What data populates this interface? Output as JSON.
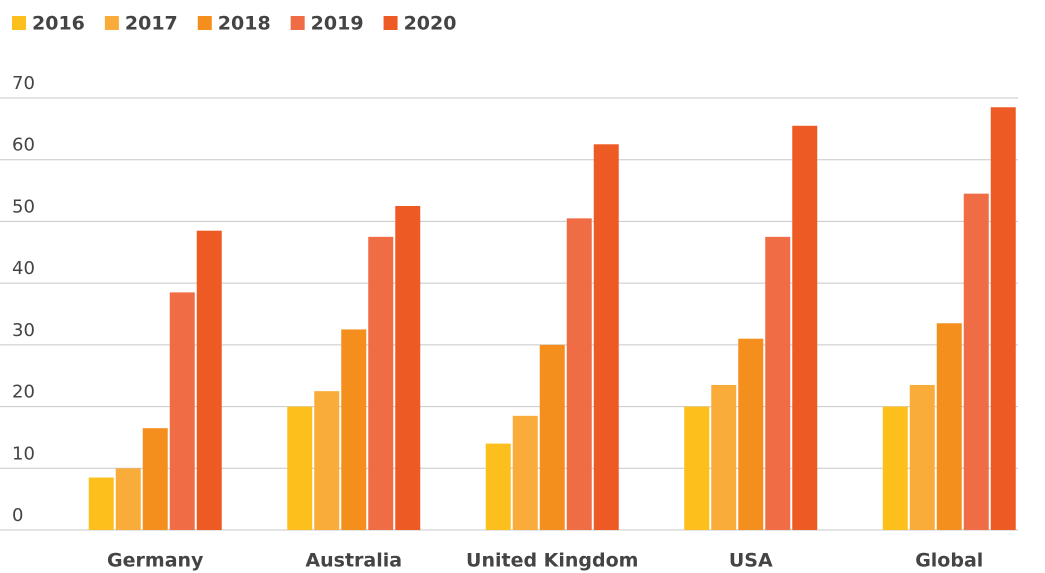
{
  "chart_data": {
    "type": "bar",
    "categories": [
      "Germany",
      "Australia",
      "United Kingdom",
      "USA",
      "Global"
    ],
    "series": [
      {
        "name": "2016",
        "color": "#fdbf1c",
        "values": [
          8.5,
          20,
          14,
          20,
          20
        ]
      },
      {
        "name": "2017",
        "color": "#f9ac3a",
        "values": [
          10,
          22.5,
          18.5,
          23.5,
          23.5
        ]
      },
      {
        "name": "2018",
        "color": "#f48f1e",
        "values": [
          16.5,
          32.5,
          30,
          31,
          33.5
        ]
      },
      {
        "name": "2019",
        "color": "#f06c45",
        "values": [
          38.5,
          47.5,
          50.5,
          47.5,
          54.5
        ]
      },
      {
        "name": "2020",
        "color": "#ee5a24",
        "values": [
          48.5,
          52.5,
          62.5,
          65.5,
          68.5
        ]
      }
    ],
    "ylim": [
      0,
      70
    ],
    "yticks": [
      0,
      10,
      20,
      30,
      40,
      50,
      60,
      70
    ],
    "grid": true,
    "legend": "top-left"
  }
}
